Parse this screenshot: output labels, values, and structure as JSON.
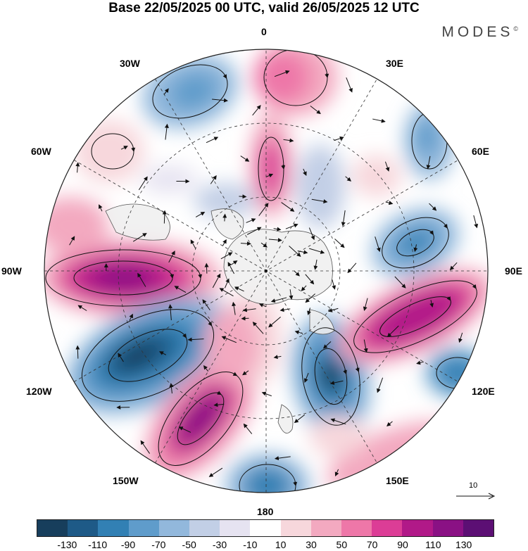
{
  "title": "Base 22/05/2025 00 UTC, valid 26/05/2025 12 UTC",
  "brand": {
    "name": "MODES",
    "mark": "©"
  },
  "longitude_labels": [
    "0",
    "30E",
    "60E",
    "90E",
    "120E",
    "150E",
    "180",
    "150W",
    "120W",
    "90W",
    "60W",
    "30W"
  ],
  "reference_vector": {
    "label": "10"
  },
  "colorbar": {
    "colors": [
      "#173e5c",
      "#1e5a87",
      "#3280b4",
      "#5f9ccb",
      "#92b8dc",
      "#c2cfe6",
      "#e6e3f1",
      "#ffffff",
      "#f7d7dc",
      "#f3a9c0",
      "#ee77a8",
      "#dc3d96",
      "#b11988",
      "#8a1184",
      "#5c0f74"
    ],
    "ticks": [
      "-130",
      "-110",
      "-90",
      "-70",
      "-50",
      "-30",
      "-10",
      "10",
      "30",
      "50",
      "70",
      "90",
      "110",
      "130"
    ]
  },
  "map_colors": {
    "land": "#eeeeee",
    "coast": "#555555",
    "grid": "#333333",
    "outline": "#222222"
  }
}
